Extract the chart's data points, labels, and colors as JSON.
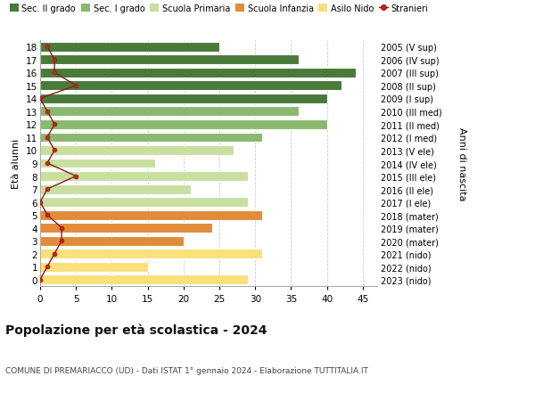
{
  "ages": [
    0,
    1,
    2,
    3,
    4,
    5,
    6,
    7,
    8,
    9,
    10,
    11,
    12,
    13,
    14,
    15,
    16,
    17,
    18
  ],
  "right_labels": [
    "2023 (nido)",
    "2022 (nido)",
    "2021 (nido)",
    "2020 (mater)",
    "2019 (mater)",
    "2018 (mater)",
    "2017 (I ele)",
    "2016 (II ele)",
    "2015 (III ele)",
    "2014 (IV ele)",
    "2013 (V ele)",
    "2012 (I med)",
    "2011 (II med)",
    "2010 (III med)",
    "2009 (I sup)",
    "2008 (II sup)",
    "2007 (III sup)",
    "2006 (IV sup)",
    "2005 (V sup)"
  ],
  "bar_values": [
    29,
    15,
    31,
    20,
    24,
    31,
    29,
    21,
    29,
    16,
    27,
    31,
    40,
    36,
    40,
    42,
    44,
    36,
    25
  ],
  "bar_colors": [
    "#f9e07a",
    "#f9e07a",
    "#f9e07a",
    "#e08c3a",
    "#e08c3a",
    "#e08c3a",
    "#c8dfa0",
    "#c8dfa0",
    "#c8dfa0",
    "#c8dfa0",
    "#c8dfa0",
    "#8ab86e",
    "#8ab86e",
    "#8ab86e",
    "#4a7a3a",
    "#4a7a3a",
    "#4a7a3a",
    "#4a7a3a",
    "#4a7a3a"
  ],
  "stranieri_values": [
    0,
    1,
    2,
    3,
    3,
    1,
    0,
    1,
    5,
    1,
    2,
    1,
    2,
    1,
    0,
    5,
    2,
    2,
    1
  ],
  "xlim": [
    0,
    47
  ],
  "ylim": [
    -0.5,
    18.5
  ],
  "title": "Popolazione per età scolastica - 2024",
  "subtitle": "COMUNE DI PREMARIACCO (UD) - Dati ISTAT 1° gennaio 2024 - Elaborazione TUTTITALIA.IT",
  "ylabel_left": "Età alunni",
  "ylabel_right": "Anni di nascita",
  "legend_items": [
    {
      "label": "Sec. II grado",
      "color": "#4a7a3a",
      "type": "patch"
    },
    {
      "label": "Sec. I grado",
      "color": "#8ab86e",
      "type": "patch"
    },
    {
      "label": "Scuola Primaria",
      "color": "#c8dfa0",
      "type": "patch"
    },
    {
      "label": "Scuola Infanzia",
      "color": "#e08c3a",
      "type": "patch"
    },
    {
      "label": "Asilo Nido",
      "color": "#f9e07a",
      "type": "patch"
    },
    {
      "label": "Stranieri",
      "color": "#aa1111",
      "type": "line"
    }
  ],
  "bg_color": "#ffffff",
  "grid_color": "#cccccc",
  "bar_height": 0.75,
  "xticks": [
    0,
    5,
    10,
    15,
    20,
    25,
    30,
    35,
    40,
    45
  ]
}
